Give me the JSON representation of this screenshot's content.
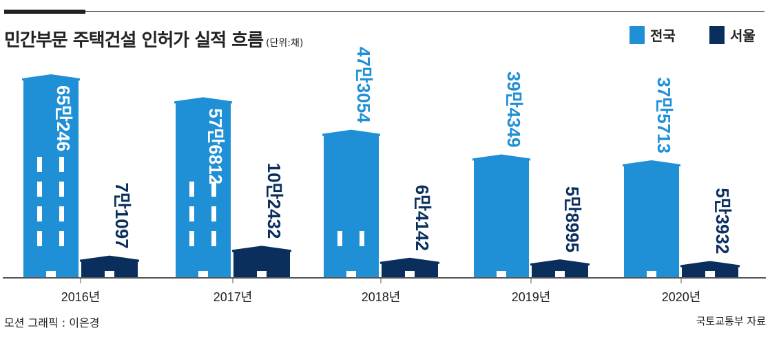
{
  "header": {
    "title": "민간부문 주택건설 인허가 실적 흐름",
    "unit": "(단위:채)"
  },
  "legend": [
    {
      "label": "전국",
      "color": "#1f8fd6"
    },
    {
      "label": "서울",
      "color": "#0a2f5c"
    }
  ],
  "footer": {
    "credit": "모션 그래픽 : 이은경",
    "source": "국토교통부 자료"
  },
  "chart_data": {
    "type": "bar",
    "title": "민간부문 주택건설 인허가 실적 흐름",
    "unit": "채",
    "categories": [
      "2016년",
      "2017년",
      "2018년",
      "2019년",
      "2020년"
    ],
    "series": [
      {
        "name": "전국",
        "color": "#1f8fd6",
        "values": [
          650246,
          576812,
          473054,
          394349,
          375713
        ],
        "labels": [
          "65만246",
          "57만6812",
          "47만3054",
          "39만4349",
          "37만5713"
        ]
      },
      {
        "name": "서울",
        "color": "#0a2f5c",
        "values": [
          71097,
          102432,
          64142,
          58995,
          53932
        ],
        "labels": [
          "7만1097",
          "10만2432",
          "6만4142",
          "5만8995",
          "5만3932"
        ]
      }
    ]
  }
}
